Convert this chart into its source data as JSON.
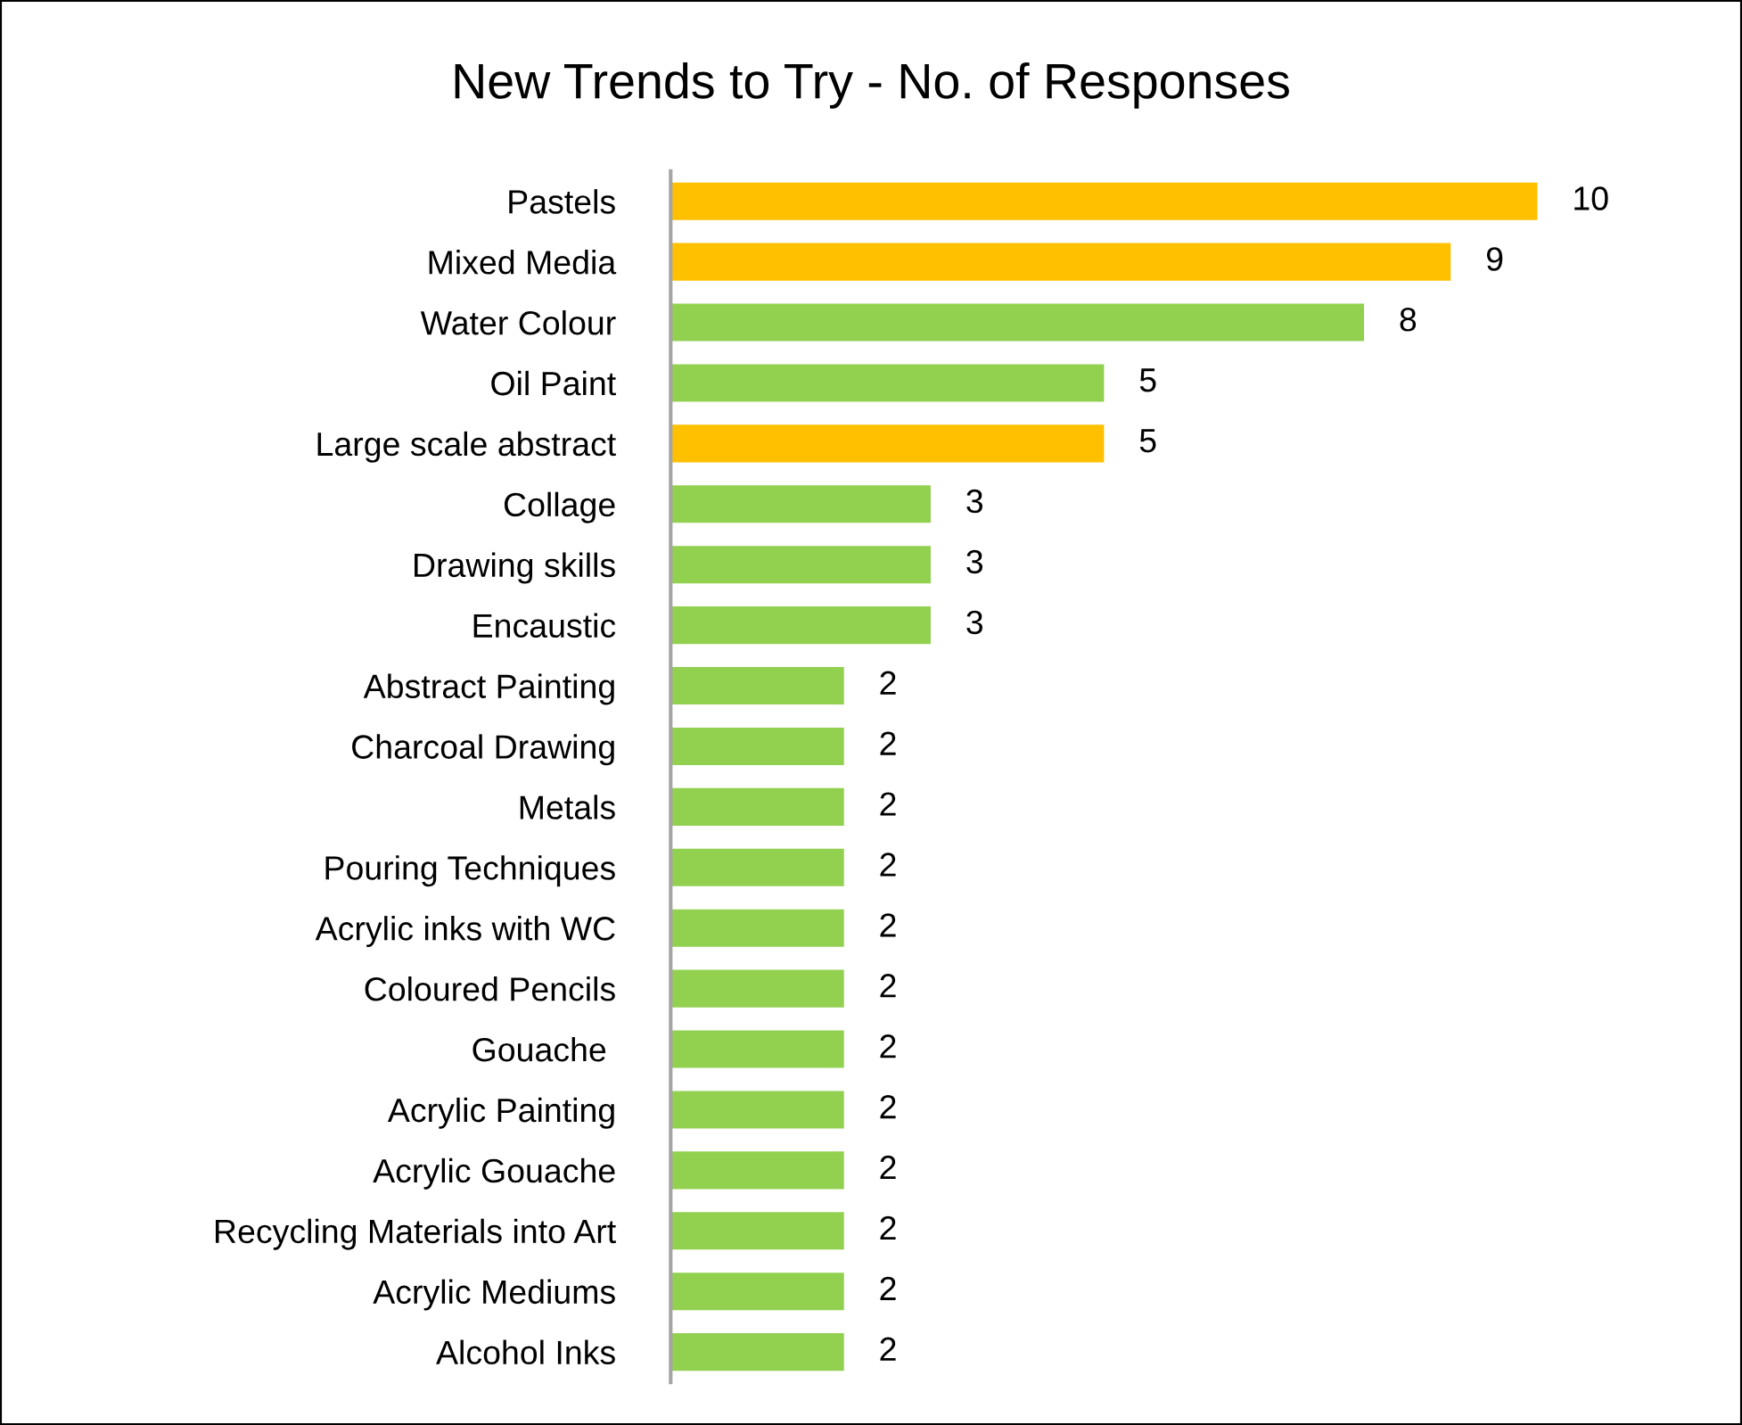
{
  "chart_data": {
    "type": "bar",
    "orientation": "horizontal",
    "title": "New Trends to Try - No. of Responses",
    "categories": [
      "Pastels",
      "Mixed Media",
      "Water Colour",
      "Oil Paint",
      "Large scale abstract",
      "Collage",
      "Drawing skills",
      "Encaustic",
      "Abstract Painting",
      "Charcoal Drawing",
      "Metals",
      "Pouring Techniques",
      "Acrylic inks with WC",
      "Coloured Pencils",
      "Gouache ",
      "Acrylic Painting",
      "Acrylic Gouache",
      "Recycling Materials into Art",
      "Acrylic Mediums",
      "Alcohol Inks"
    ],
    "values": [
      10,
      9,
      8,
      5,
      5,
      3,
      3,
      3,
      2,
      2,
      2,
      2,
      2,
      2,
      2,
      2,
      2,
      2,
      2,
      2
    ],
    "colors": [
      "#ffc000",
      "#ffc000",
      "#92d050",
      "#92d050",
      "#ffc000",
      "#92d050",
      "#92d050",
      "#92d050",
      "#92d050",
      "#92d050",
      "#92d050",
      "#92d050",
      "#92d050",
      "#92d050",
      "#92d050",
      "#92d050",
      "#92d050",
      "#92d050",
      "#92d050",
      "#92d050"
    ],
    "data_labels": true,
    "grid": false,
    "legend": false,
    "tick_labels": "y"
  }
}
